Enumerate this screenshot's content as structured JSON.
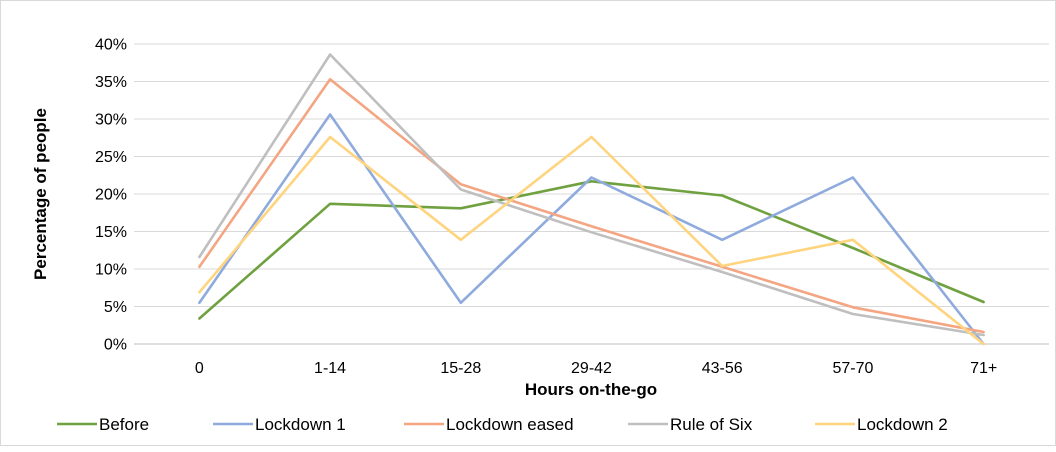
{
  "chart_data": {
    "type": "line",
    "xlabel": "Hours on-the-go",
    "ylabel": "Percentage of people",
    "categories": [
      "0",
      "1-14",
      "15-28",
      "29-42",
      "43-56",
      "57-70",
      "71+"
    ],
    "ylim": [
      0,
      40
    ],
    "yticks": [
      "0%",
      "5%",
      "10%",
      "15%",
      "20%",
      "25%",
      "30%",
      "35%",
      "40%"
    ],
    "grid": true,
    "legend_position": "bottom",
    "series": [
      {
        "name": "Before",
        "color": "#70a140",
        "values": [
          3.4,
          18.7,
          18.1,
          21.7,
          19.8,
          12.8,
          5.6
        ]
      },
      {
        "name": "Lockdown 1",
        "color": "#8faadc",
        "values": [
          5.5,
          30.6,
          5.5,
          22.2,
          13.9,
          22.2,
          0
        ]
      },
      {
        "name": "Lockdown eased",
        "color": "#f4a582",
        "values": [
          10.3,
          35.3,
          21.3,
          15.7,
          10.3,
          4.9,
          1.6
        ]
      },
      {
        "name": "Rule of Six",
        "color": "#bfbfbf",
        "values": [
          11.6,
          38.6,
          20.6,
          14.9,
          9.6,
          4.0,
          1.2
        ]
      },
      {
        "name": "Lockdown 2",
        "color": "#ffd47f",
        "values": [
          6.9,
          27.6,
          13.9,
          27.6,
          10.4,
          13.9,
          0
        ]
      }
    ]
  }
}
